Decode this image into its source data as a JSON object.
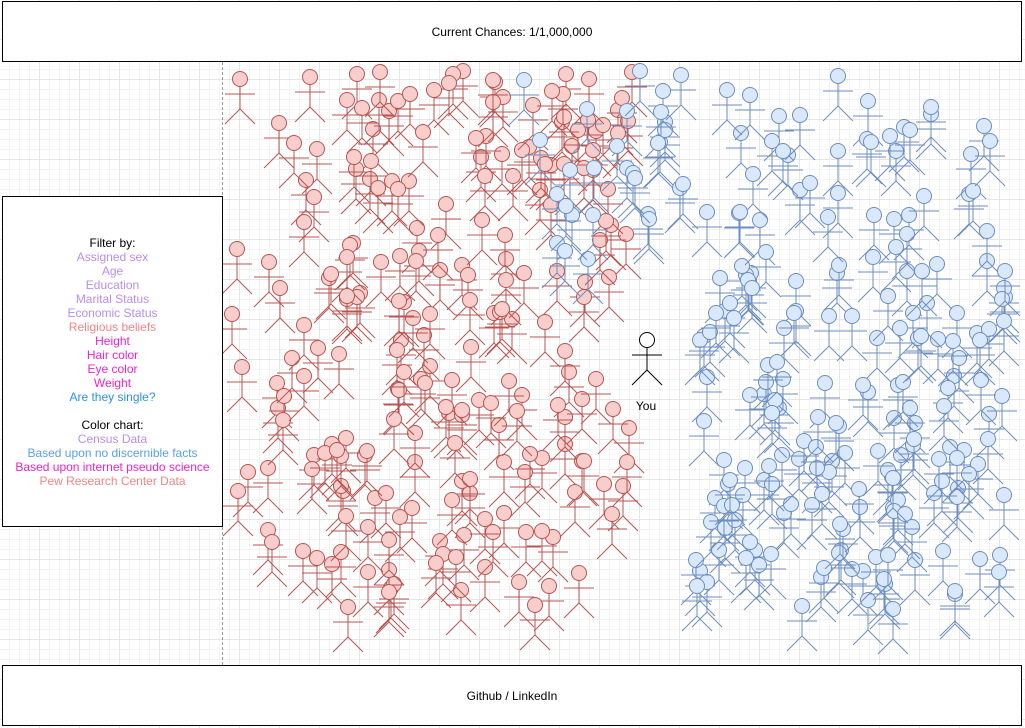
{
  "header": {
    "chances_text": "Current Chances: 1/1,000,000"
  },
  "filter_panel": {
    "filter_title": "Filter by:",
    "filters": [
      {
        "label": "Assigned sex",
        "color": "#b98ef0"
      },
      {
        "label": "Age",
        "color": "#b98ef0"
      },
      {
        "label": "Education",
        "color": "#b98ef0"
      },
      {
        "label": "Marital Status",
        "color": "#b98ef0"
      },
      {
        "label": "Economic Status",
        "color": "#b98ef0"
      },
      {
        "label": "Religious beliefs",
        "color": "#ef8585"
      },
      {
        "label": "Height",
        "color": "#ee22cc"
      },
      {
        "label": "Hair color",
        "color": "#ee22cc"
      },
      {
        "label": "Eye color",
        "color": "#ee22cc"
      },
      {
        "label": "Weight",
        "color": "#ee22cc"
      },
      {
        "label": "Are they single?",
        "color": "#2f8fe8"
      }
    ],
    "color_chart_title": "Color chart:",
    "color_chart": [
      {
        "label": "Census Data",
        "color": "#b98ef0"
      },
      {
        "label": "Based upon no discernible facts",
        "color": "#5aa0e8"
      },
      {
        "label": "Based upon internet pseudo science",
        "color": "#ee22cc"
      },
      {
        "label": "Pew Research Center Data",
        "color": "#ef8585"
      }
    ]
  },
  "you": {
    "label": "You"
  },
  "footer": {
    "links_text": "Github / LinkedIn"
  },
  "colors": {
    "red_fill": "#f8cecc",
    "red_stroke": "#b85450",
    "blue_fill": "#dae8fc",
    "blue_stroke": "#6c8ebf",
    "you_fill": "#ffffff",
    "you_stroke": "#000000"
  }
}
